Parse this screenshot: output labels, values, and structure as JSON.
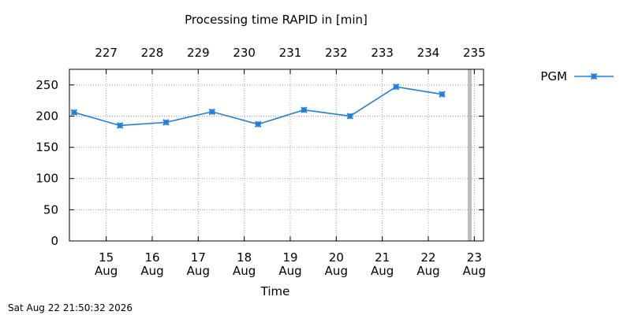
{
  "chart_data": {
    "type": "line",
    "title": "Processing time RAPID in [min]",
    "xlabel": "Time",
    "ylabel": "",
    "ylim": [
      0,
      275
    ],
    "y_ticks": [
      "0",
      "50",
      "100",
      "150",
      "200",
      "250"
    ],
    "y_tick_values": [
      0,
      50,
      100,
      150,
      200,
      250
    ],
    "x_ticks_bottom": [
      {
        "day": "15",
        "month": "Aug"
      },
      {
        "day": "16",
        "month": "Aug"
      },
      {
        "day": "17",
        "month": "Aug"
      },
      {
        "day": "18",
        "month": "Aug"
      },
      {
        "day": "19",
        "month": "Aug"
      },
      {
        "day": "20",
        "month": "Aug"
      },
      {
        "day": "21",
        "month": "Aug"
      },
      {
        "day": "22",
        "month": "Aug"
      },
      {
        "day": "23",
        "month": "Aug"
      }
    ],
    "x_ticks_top": [
      "227",
      "228",
      "229",
      "230",
      "231",
      "232",
      "233",
      "234",
      "235"
    ],
    "tick_x_values": [
      15,
      16,
      17,
      18,
      19,
      20,
      21,
      22,
      23
    ],
    "xlim": [
      14.2,
      23.2
    ],
    "grid": true,
    "legend_position": "right",
    "current_time_marker": 22.9,
    "series": [
      {
        "name": "PGM",
        "color": "#1e7fdc",
        "marker": "x-icon",
        "x": [
          14.3,
          15.3,
          16.3,
          17.3,
          18.3,
          19.3,
          20.3,
          21.3,
          22.3
        ],
        "values": [
          206,
          185,
          190,
          207,
          187,
          210,
          200,
          247,
          235
        ]
      }
    ]
  },
  "footer": {
    "timestamp": "Sat Aug 22 21:50:32 2026"
  }
}
